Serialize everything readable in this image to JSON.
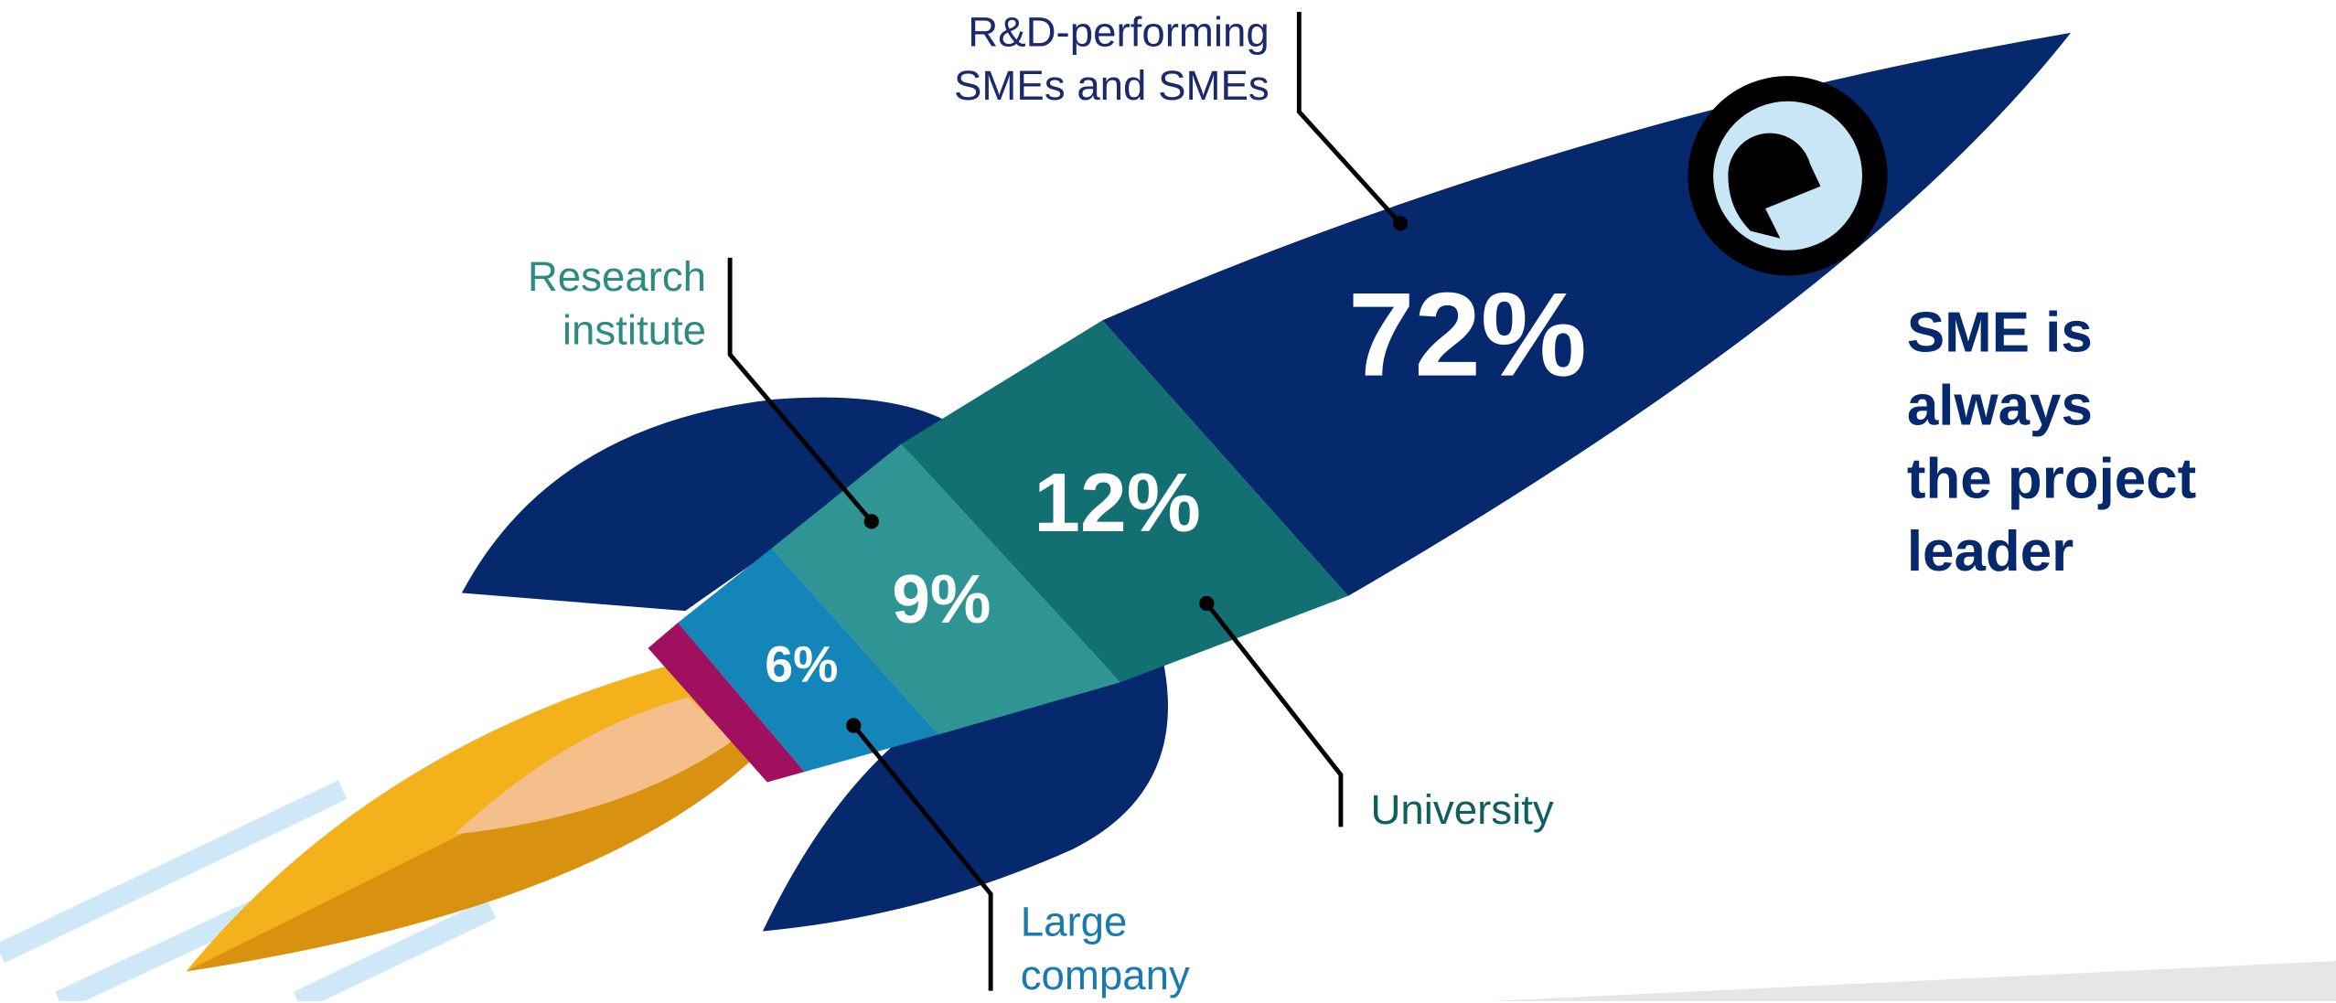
{
  "chart_data": {
    "type": "rocket",
    "categories": [
      "R&D-performing\nSMEs and SMEs",
      "University",
      "Research\ninstitute",
      "Large\ncompany"
    ],
    "values": [
      72,
      12,
      9,
      6
    ],
    "value_labels": [
      "72%",
      "12%",
      "9%",
      "6%"
    ],
    "colors": [
      "#06296e",
      "#127073",
      "#2e9494",
      "#1385b8"
    ],
    "annotation": "SME is\nalways\nthe project\nleader"
  }
}
